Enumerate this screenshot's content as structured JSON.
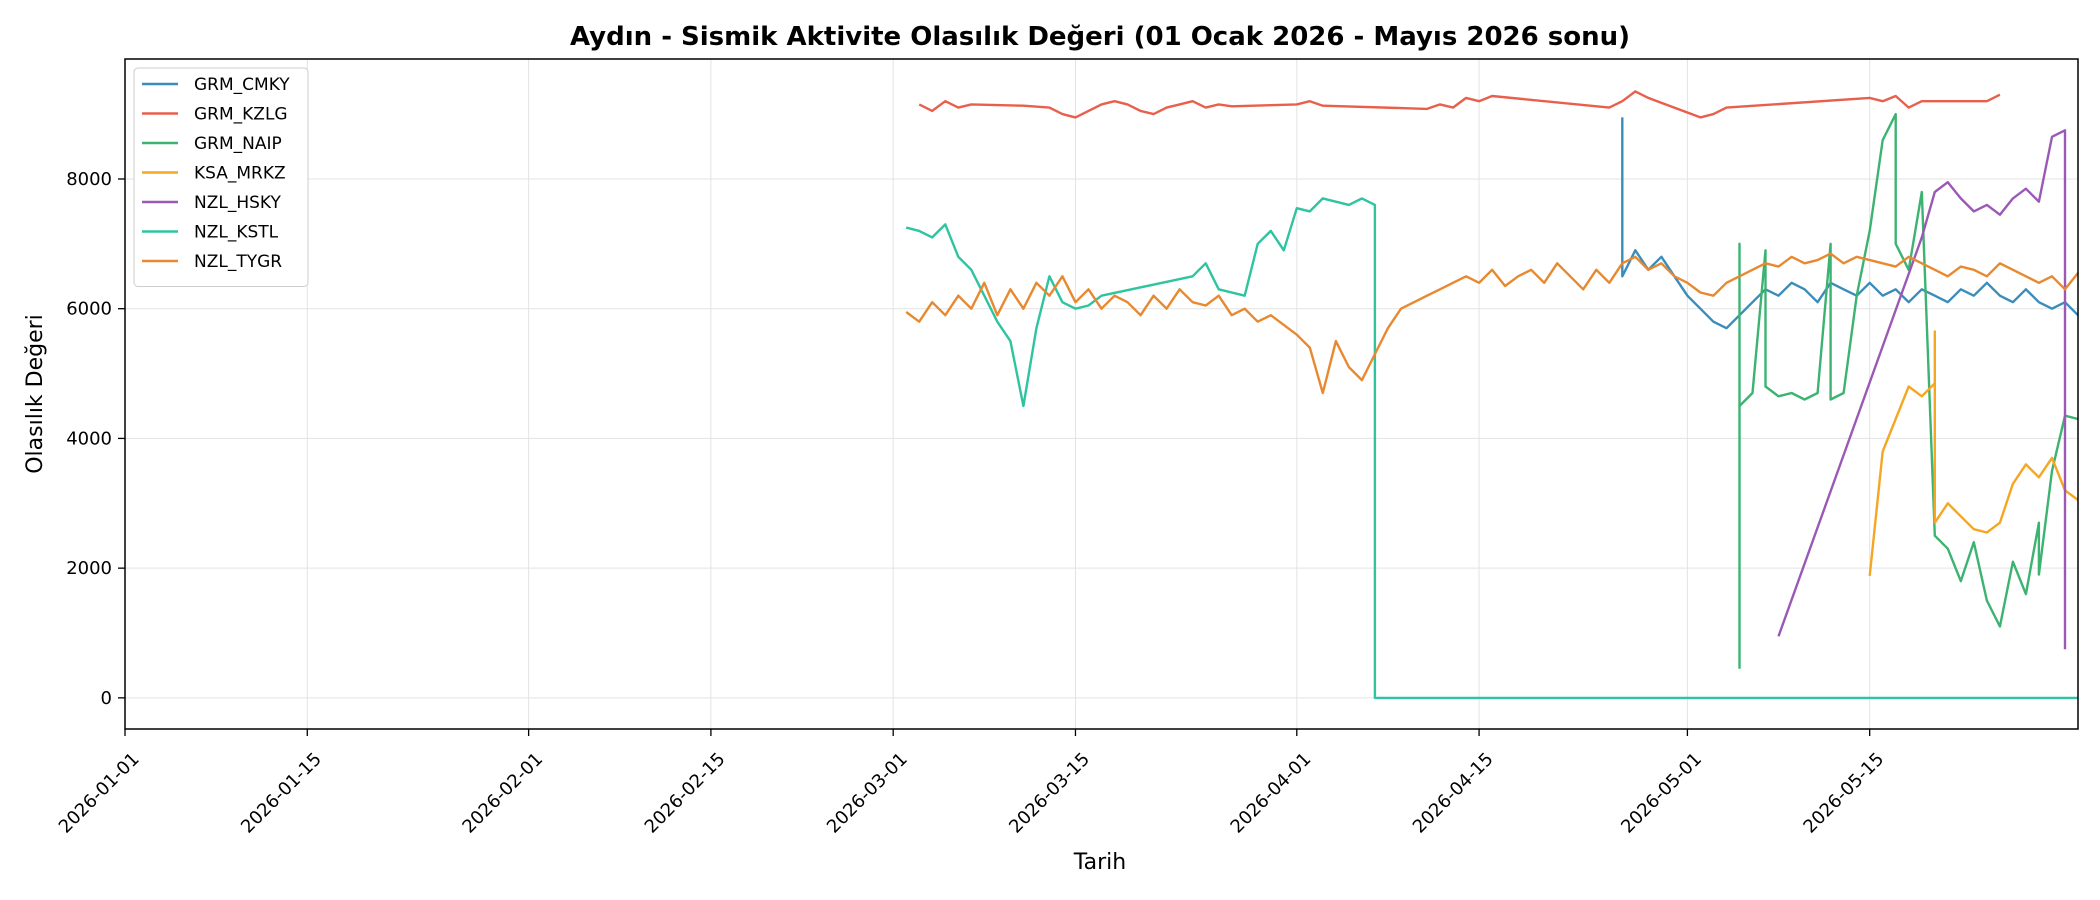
{
  "chart_data": {
    "type": "line",
    "title": "Aydın - Sismik Aktivite Olasılık Değeri (01 Ocak 2026 - Mayıs 2026 sonu)",
    "xlabel": "Tarih",
    "ylabel": "Olasılık Değeri",
    "x_type": "date",
    "xlim": [
      "2026-01-01",
      "2026-05-31"
    ],
    "ylim": [
      -480,
      9850
    ],
    "x_ticks": [
      "2026-01-01",
      "2026-01-15",
      "2026-02-01",
      "2026-02-15",
      "2026-03-01",
      "2026-03-15",
      "2026-04-01",
      "2026-04-15",
      "2026-05-01",
      "2026-05-15"
    ],
    "y_ticks": [
      0,
      2000,
      4000,
      6000,
      8000
    ],
    "grid": true,
    "legend_position": "top-left",
    "series": [
      {
        "name": "GRM_CMKY",
        "color": "#3a8dbb",
        "points": [
          [
            "2026-04-26",
            8950
          ],
          [
            "2026-04-26",
            6500
          ],
          [
            "2026-04-27",
            6900
          ],
          [
            "2026-04-28",
            6600
          ],
          [
            "2026-04-29",
            6800
          ],
          [
            "2026-04-30",
            6500
          ],
          [
            "2026-05-01",
            6200
          ],
          [
            "2026-05-02",
            6000
          ],
          [
            "2026-05-03",
            5800
          ],
          [
            "2026-05-04",
            5700
          ],
          [
            "2026-05-05",
            5900
          ],
          [
            "2026-05-06",
            6100
          ],
          [
            "2026-05-07",
            6300
          ],
          [
            "2026-05-08",
            6200
          ],
          [
            "2026-05-09",
            6400
          ],
          [
            "2026-05-10",
            6300
          ],
          [
            "2026-05-11",
            6100
          ],
          [
            "2026-05-12",
            6400
          ],
          [
            "2026-05-13",
            6300
          ],
          [
            "2026-05-14",
            6200
          ],
          [
            "2026-05-15",
            6400
          ],
          [
            "2026-05-16",
            6200
          ],
          [
            "2026-05-17",
            6300
          ],
          [
            "2026-05-18",
            6100
          ],
          [
            "2026-05-19",
            6300
          ],
          [
            "2026-05-20",
            6200
          ],
          [
            "2026-05-21",
            6100
          ],
          [
            "2026-05-22",
            6300
          ],
          [
            "2026-05-23",
            6200
          ],
          [
            "2026-05-24",
            6400
          ],
          [
            "2026-05-25",
            6200
          ],
          [
            "2026-05-26",
            6100
          ],
          [
            "2026-05-27",
            6300
          ],
          [
            "2026-05-28",
            6100
          ],
          [
            "2026-05-29",
            6000
          ],
          [
            "2026-05-30",
            6100
          ],
          [
            "2026-05-31",
            5900
          ]
        ]
      },
      {
        "name": "GRM_KZLG",
        "color": "#e8604c",
        "points": [
          [
            "2026-03-03",
            9150
          ],
          [
            "2026-03-04",
            9050
          ],
          [
            "2026-03-05",
            9200
          ],
          [
            "2026-03-06",
            9100
          ],
          [
            "2026-03-07",
            9150
          ],
          [
            "2026-03-11",
            9130
          ],
          [
            "2026-03-13",
            9100
          ],
          [
            "2026-03-14",
            9000
          ],
          [
            "2026-03-15",
            8950
          ],
          [
            "2026-03-16",
            9050
          ],
          [
            "2026-03-17",
            9150
          ],
          [
            "2026-03-18",
            9200
          ],
          [
            "2026-03-19",
            9150
          ],
          [
            "2026-03-20",
            9050
          ],
          [
            "2026-03-21",
            9000
          ],
          [
            "2026-03-22",
            9100
          ],
          [
            "2026-03-23",
            9150
          ],
          [
            "2026-03-24",
            9200
          ],
          [
            "2026-03-25",
            9100
          ],
          [
            "2026-03-26",
            9150
          ],
          [
            "2026-03-27",
            9120
          ],
          [
            "2026-04-01",
            9150
          ],
          [
            "2026-04-02",
            9200
          ],
          [
            "2026-04-03",
            9130
          ],
          [
            "2026-04-11",
            9080
          ],
          [
            "2026-04-12",
            9150
          ],
          [
            "2026-04-13",
            9100
          ],
          [
            "2026-04-14",
            9250
          ],
          [
            "2026-04-15",
            9200
          ],
          [
            "2026-04-16",
            9280
          ],
          [
            "2026-04-25",
            9100
          ],
          [
            "2026-04-26",
            9200
          ],
          [
            "2026-04-27",
            9350
          ],
          [
            "2026-04-28",
            9250
          ],
          [
            "2026-05-02",
            8950
          ],
          [
            "2026-05-03",
            9000
          ],
          [
            "2026-05-04",
            9100
          ],
          [
            "2026-05-15",
            9250
          ],
          [
            "2026-05-16",
            9200
          ],
          [
            "2026-05-17",
            9280
          ],
          [
            "2026-05-18",
            9100
          ],
          [
            "2026-05-19",
            9200
          ],
          [
            "2026-05-24",
            9200
          ],
          [
            "2026-05-25",
            9300
          ]
        ]
      },
      {
        "name": "GRM_NAIP",
        "color": "#3cb371",
        "points": [
          [
            "2026-05-05",
            450
          ],
          [
            "2026-05-05",
            7000
          ],
          [
            "2026-05-05",
            4500
          ],
          [
            "2026-05-06",
            4700
          ],
          [
            "2026-05-07",
            6900
          ],
          [
            "2026-05-07",
            4800
          ],
          [
            "2026-05-08",
            4650
          ],
          [
            "2026-05-09",
            4700
          ],
          [
            "2026-05-10",
            4600
          ],
          [
            "2026-05-11",
            4700
          ],
          [
            "2026-05-12",
            7000
          ],
          [
            "2026-05-12",
            4600
          ],
          [
            "2026-05-13",
            4700
          ],
          [
            "2026-05-14",
            6200
          ],
          [
            "2026-05-15",
            7200
          ],
          [
            "2026-05-16",
            8600
          ],
          [
            "2026-05-17",
            9000
          ],
          [
            "2026-05-17",
            7000
          ],
          [
            "2026-05-18",
            6600
          ],
          [
            "2026-05-19",
            7800
          ],
          [
            "2026-05-20",
            2500
          ],
          [
            "2026-05-21",
            2300
          ],
          [
            "2026-05-22",
            1800
          ],
          [
            "2026-05-23",
            2400
          ],
          [
            "2026-05-24",
            1500
          ],
          [
            "2026-05-25",
            1100
          ],
          [
            "2026-05-26",
            2100
          ],
          [
            "2026-05-27",
            1600
          ],
          [
            "2026-05-28",
            2700
          ],
          [
            "2026-05-28",
            1900
          ],
          [
            "2026-05-29",
            3500
          ],
          [
            "2026-05-30",
            4350
          ],
          [
            "2026-05-31",
            4300
          ]
        ]
      },
      {
        "name": "KSA_MRKZ",
        "color": "#f5a623",
        "points": [
          [
            "2026-05-15",
            1880
          ],
          [
            "2026-05-16",
            3800
          ],
          [
            "2026-05-17",
            4300
          ],
          [
            "2026-05-18",
            4800
          ],
          [
            "2026-05-19",
            4650
          ],
          [
            "2026-05-20",
            4850
          ],
          [
            "2026-05-20",
            5650
          ],
          [
            "2026-05-20",
            2700
          ],
          [
            "2026-05-21",
            3000
          ],
          [
            "2026-05-22",
            2800
          ],
          [
            "2026-05-23",
            2600
          ],
          [
            "2026-05-24",
            2550
          ],
          [
            "2026-05-25",
            2700
          ],
          [
            "2026-05-26",
            3300
          ],
          [
            "2026-05-27",
            3600
          ],
          [
            "2026-05-28",
            3400
          ],
          [
            "2026-05-29",
            3700
          ],
          [
            "2026-05-30",
            3200
          ],
          [
            "2026-05-31",
            3050
          ]
        ]
      },
      {
        "name": "NZL_HSKY",
        "color": "#9b59b6",
        "points": [
          [
            "2026-05-08",
            950
          ],
          [
            "2026-05-19",
            7100
          ],
          [
            "2026-05-20",
            7800
          ],
          [
            "2026-05-21",
            7950
          ],
          [
            "2026-05-22",
            7700
          ],
          [
            "2026-05-23",
            7500
          ],
          [
            "2026-05-24",
            7600
          ],
          [
            "2026-05-25",
            7450
          ],
          [
            "2026-05-26",
            7700
          ],
          [
            "2026-05-27",
            7850
          ],
          [
            "2026-05-28",
            7650
          ],
          [
            "2026-05-29",
            8650
          ],
          [
            "2026-05-30",
            8750
          ],
          [
            "2026-05-30",
            750
          ]
        ]
      },
      {
        "name": "NZL_KSTL",
        "color": "#2ec4a0",
        "points": [
          [
            "2026-03-02",
            7250
          ],
          [
            "2026-03-03",
            7200
          ],
          [
            "2026-03-04",
            7100
          ],
          [
            "2026-03-05",
            7300
          ],
          [
            "2026-03-06",
            6800
          ],
          [
            "2026-03-07",
            6600
          ],
          [
            "2026-03-08",
            6200
          ],
          [
            "2026-03-09",
            5800
          ],
          [
            "2026-03-10",
            5500
          ],
          [
            "2026-03-11",
            4500
          ],
          [
            "2026-03-12",
            5700
          ],
          [
            "2026-03-13",
            6500
          ],
          [
            "2026-03-14",
            6100
          ],
          [
            "2026-03-15",
            6000
          ],
          [
            "2026-03-16",
            6050
          ],
          [
            "2026-03-17",
            6200
          ],
          [
            "2026-03-24",
            6500
          ],
          [
            "2026-03-25",
            6700
          ],
          [
            "2026-03-26",
            6300
          ],
          [
            "2026-03-28",
            6200
          ],
          [
            "2026-03-29",
            7000
          ],
          [
            "2026-03-30",
            7200
          ],
          [
            "2026-03-31",
            6900
          ],
          [
            "2026-04-01",
            7550
          ],
          [
            "2026-04-02",
            7500
          ],
          [
            "2026-04-03",
            7700
          ],
          [
            "2026-04-04",
            7650
          ],
          [
            "2026-04-05",
            7600
          ],
          [
            "2026-04-06",
            7700
          ],
          [
            "2026-04-07",
            7600
          ],
          [
            "2026-04-07",
            0
          ],
          [
            "2026-05-31",
            0
          ]
        ]
      },
      {
        "name": "NZL_TYGR",
        "color": "#e8892f",
        "points": [
          [
            "2026-03-02",
            5950
          ],
          [
            "2026-03-03",
            5800
          ],
          [
            "2026-03-04",
            6100
          ],
          [
            "2026-03-05",
            5900
          ],
          [
            "2026-03-06",
            6200
          ],
          [
            "2026-03-07",
            6000
          ],
          [
            "2026-03-08",
            6400
          ],
          [
            "2026-03-09",
            5900
          ],
          [
            "2026-03-10",
            6300
          ],
          [
            "2026-03-11",
            6000
          ],
          [
            "2026-03-12",
            6400
          ],
          [
            "2026-03-13",
            6200
          ],
          [
            "2026-03-14",
            6500
          ],
          [
            "2026-03-15",
            6100
          ],
          [
            "2026-03-16",
            6300
          ],
          [
            "2026-03-17",
            6000
          ],
          [
            "2026-03-18",
            6200
          ],
          [
            "2026-03-19",
            6100
          ],
          [
            "2026-03-20",
            5900
          ],
          [
            "2026-03-21",
            6200
          ],
          [
            "2026-03-22",
            6000
          ],
          [
            "2026-03-23",
            6300
          ],
          [
            "2026-03-24",
            6100
          ],
          [
            "2026-03-25",
            6050
          ],
          [
            "2026-03-26",
            6200
          ],
          [
            "2026-03-27",
            5900
          ],
          [
            "2026-03-28",
            6000
          ],
          [
            "2026-03-29",
            5800
          ],
          [
            "2026-03-30",
            5900
          ],
          [
            "2026-03-31",
            5750
          ],
          [
            "2026-04-01",
            5600
          ],
          [
            "2026-04-02",
            5400
          ],
          [
            "2026-04-03",
            4700
          ],
          [
            "2026-04-04",
            5500
          ],
          [
            "2026-04-05",
            5100
          ],
          [
            "2026-04-06",
            4900
          ],
          [
            "2026-04-07",
            5300
          ],
          [
            "2026-04-08",
            5700
          ],
          [
            "2026-04-09",
            6000
          ],
          [
            "2026-04-10",
            6100
          ],
          [
            "2026-04-11",
            6200
          ],
          [
            "2026-04-12",
            6300
          ],
          [
            "2026-04-13",
            6400
          ],
          [
            "2026-04-14",
            6500
          ],
          [
            "2026-04-15",
            6400
          ],
          [
            "2026-04-16",
            6600
          ],
          [
            "2026-04-17",
            6350
          ],
          [
            "2026-04-18",
            6500
          ],
          [
            "2026-04-19",
            6600
          ],
          [
            "2026-04-20",
            6400
          ],
          [
            "2026-04-21",
            6700
          ],
          [
            "2026-04-22",
            6500
          ],
          [
            "2026-04-23",
            6300
          ],
          [
            "2026-04-24",
            6600
          ],
          [
            "2026-04-25",
            6400
          ],
          [
            "2026-04-26",
            6700
          ],
          [
            "2026-04-27",
            6800
          ],
          [
            "2026-04-28",
            6600
          ],
          [
            "2026-04-29",
            6700
          ],
          [
            "2026-04-30",
            6500
          ],
          [
            "2026-05-01",
            6400
          ],
          [
            "2026-05-02",
            6250
          ],
          [
            "2026-05-03",
            6200
          ],
          [
            "2026-05-04",
            6400
          ],
          [
            "2026-05-05",
            6500
          ],
          [
            "2026-05-06",
            6600
          ],
          [
            "2026-05-07",
            6700
          ],
          [
            "2026-05-08",
            6650
          ],
          [
            "2026-05-09",
            6800
          ],
          [
            "2026-05-10",
            6700
          ],
          [
            "2026-05-11",
            6750
          ],
          [
            "2026-05-12",
            6850
          ],
          [
            "2026-05-13",
            6700
          ],
          [
            "2026-05-14",
            6800
          ],
          [
            "2026-05-15",
            6750
          ],
          [
            "2026-05-16",
            6700
          ],
          [
            "2026-05-17",
            6650
          ],
          [
            "2026-05-18",
            6800
          ],
          [
            "2026-05-19",
            6700
          ],
          [
            "2026-05-20",
            6600
          ],
          [
            "2026-05-21",
            6500
          ],
          [
            "2026-05-22",
            6650
          ],
          [
            "2026-05-23",
            6600
          ],
          [
            "2026-05-24",
            6500
          ],
          [
            "2026-05-25",
            6700
          ],
          [
            "2026-05-26",
            6600
          ],
          [
            "2026-05-27",
            6500
          ],
          [
            "2026-05-28",
            6400
          ],
          [
            "2026-05-29",
            6500
          ],
          [
            "2026-05-30",
            6300
          ],
          [
            "2026-05-31",
            6550
          ]
        ]
      }
    ]
  }
}
